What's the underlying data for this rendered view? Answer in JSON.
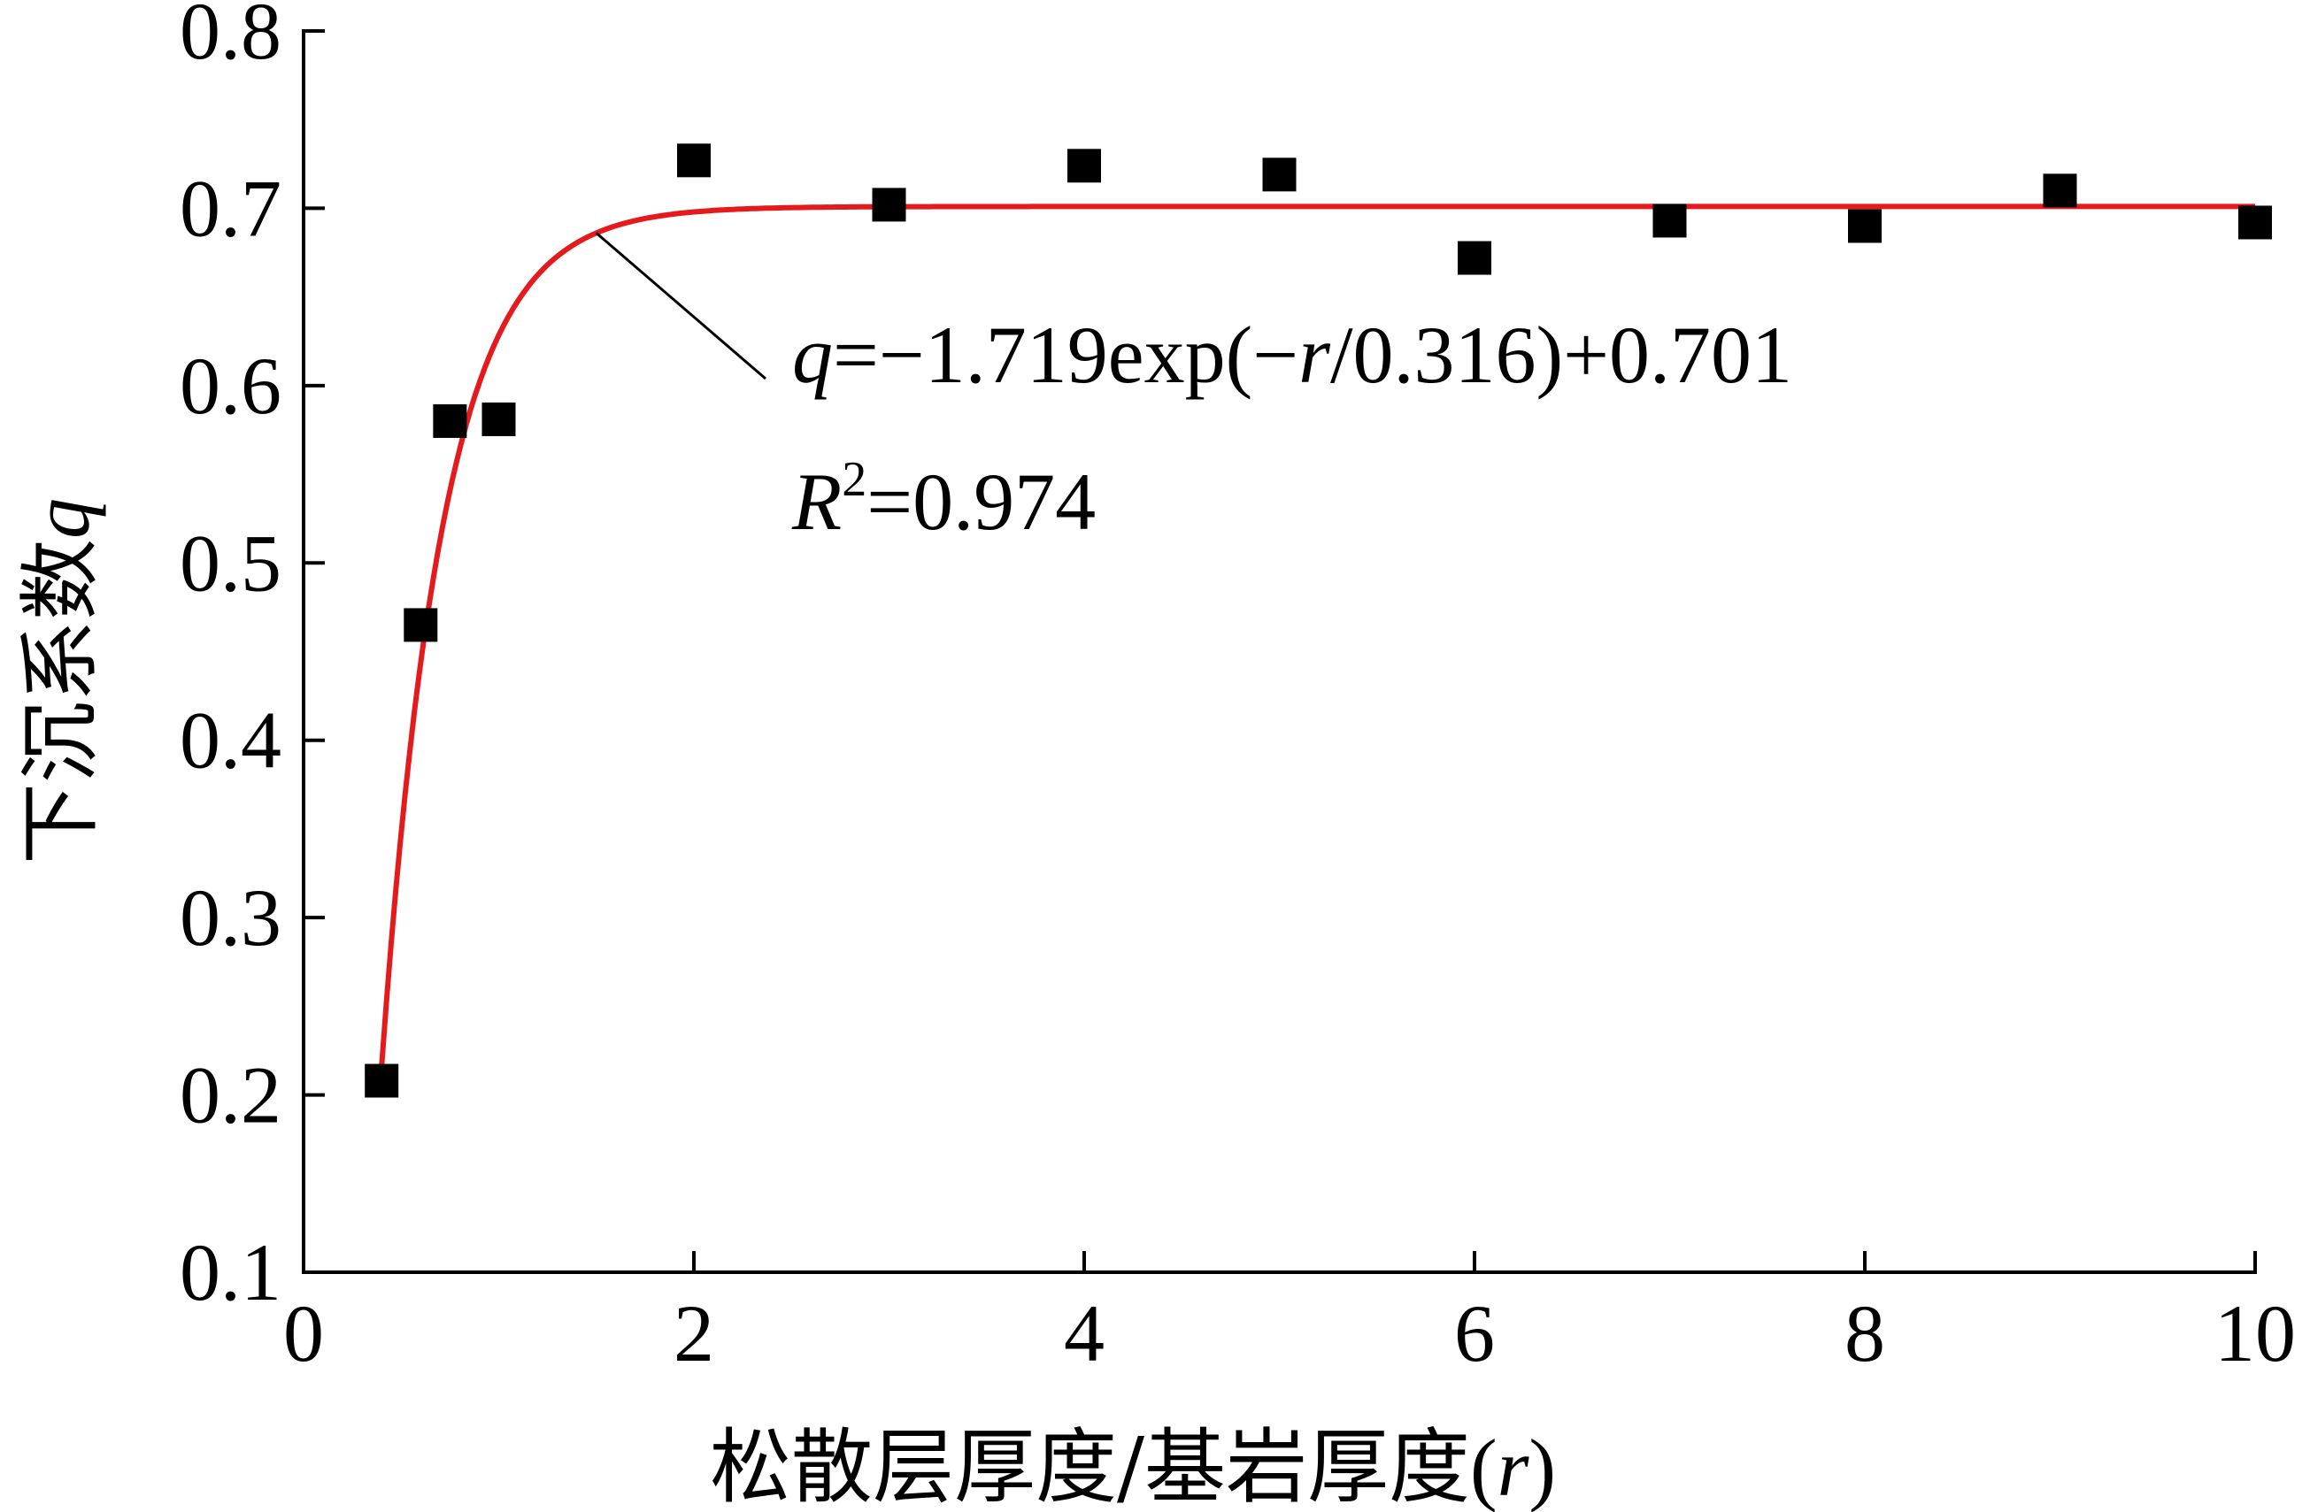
{
  "chart_data": {
    "type": "scatter",
    "xlabel": {
      "main": "松散层厚度/基岩厚度",
      "open": "(",
      "var": "r",
      "close": ")"
    },
    "ylabel": {
      "main": "下沉系数",
      "var": "q"
    },
    "xlim": [
      0,
      10
    ],
    "ylim": [
      0.1,
      0.8
    ],
    "xticks": [
      0,
      2,
      4,
      6,
      8,
      10
    ],
    "yticks": [
      0.1,
      0.2,
      0.3,
      0.4,
      0.5,
      0.6,
      0.7,
      0.8
    ],
    "grid": false,
    "series": [
      {
        "kind": "scatter",
        "marker": "square",
        "color": "#000000",
        "points": [
          {
            "x": 0.4,
            "y": 0.208
          },
          {
            "x": 0.6,
            "y": 0.465
          },
          {
            "x": 0.75,
            "y": 0.58
          },
          {
            "x": 1.0,
            "y": 0.581
          },
          {
            "x": 2.0,
            "y": 0.727
          },
          {
            "x": 3.0,
            "y": 0.702
          },
          {
            "x": 4.0,
            "y": 0.724
          },
          {
            "x": 5.0,
            "y": 0.719
          },
          {
            "x": 6.0,
            "y": 0.672
          },
          {
            "x": 7.0,
            "y": 0.693
          },
          {
            "x": 8.0,
            "y": 0.69
          },
          {
            "x": 9.0,
            "y": 0.71
          },
          {
            "x": 10.0,
            "y": 0.692
          }
        ]
      },
      {
        "kind": "fit",
        "color": "#e41a1c",
        "model": "exponential",
        "A": -1.719,
        "t": 0.316,
        "y0": 0.701,
        "x_range": [
          0.4,
          10
        ]
      }
    ],
    "annotation": {
      "formula": {
        "var": "q",
        "eq1": "=−1.719exp(−",
        "var2": "r",
        "eq2": "/0.316)+0.701"
      },
      "r2": {
        "var": "R",
        "sup": "2",
        "eq": "=0.974"
      },
      "leader_from_x": 1.5
    }
  }
}
